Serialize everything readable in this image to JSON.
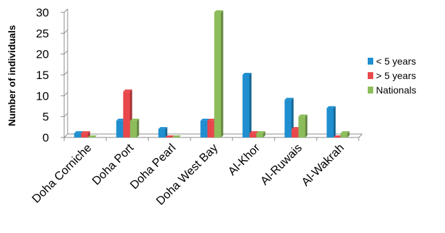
{
  "chart_data": {
    "type": "bar",
    "title": "",
    "xlabel": "",
    "ylabel": "Number of individuals",
    "ylim": [
      0,
      30
    ],
    "yticks": [
      0,
      5,
      10,
      15,
      20,
      25,
      30
    ],
    "grid": false,
    "legend_position": "right",
    "categories": [
      "Doha Corniche",
      "Doha Port",
      "Doha Pearl",
      "Doha West Bay",
      "Al-Khor",
      "Al-Ruwais",
      "Al-Wakrah"
    ],
    "series": [
      {
        "name": "< 5 years",
        "values": [
          1,
          4,
          2,
          4,
          15,
          9,
          7
        ],
        "color": "#1f8fd0"
      },
      {
        "name": "> 5 years",
        "values": [
          1,
          11,
          0,
          4,
          1,
          2,
          0
        ],
        "color": "#e8484c"
      },
      {
        "name": "Nationals",
        "values": [
          0,
          4,
          0,
          30,
          1,
          5,
          1
        ],
        "color": "#8cbd5a"
      }
    ]
  }
}
